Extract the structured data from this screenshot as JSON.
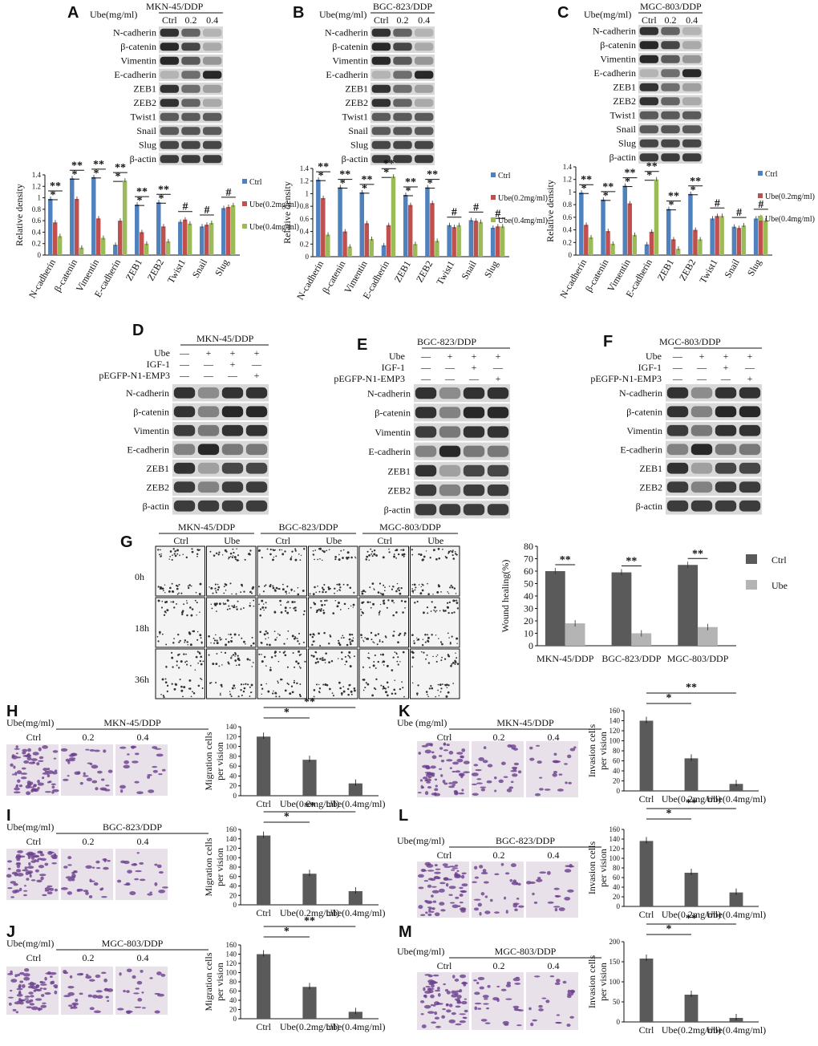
{
  "panels": {
    "A": {
      "label": "A",
      "cell": "MKN-45/DDP",
      "ube_header": "Ube(mg/ml)",
      "doses": [
        "Ctrl",
        "0.2",
        "0.4"
      ],
      "genes": [
        "N-cadherin",
        "β-catenin",
        "Vimentin",
        "E-cadherin",
        "ZEB1",
        "ZEB2",
        "Twist1",
        "Snail",
        "Slug",
        "β-actin"
      ]
    },
    "B": {
      "label": "B",
      "cell": "BGC-823/DDP",
      "ube_header": "Ube(mg/ml)",
      "doses": [
        "Ctrl",
        "0.2",
        "0.4"
      ],
      "genes": [
        "N-cadherin",
        "β-catenin",
        "Vimentin",
        "E-cadherin",
        "ZEB1",
        "ZEB2",
        "Twist1",
        "Snail",
        "Slug",
        "β-actin"
      ]
    },
    "C": {
      "label": "C",
      "cell": "MGC-803/DDP",
      "ube_header": "Ube(mg/ml)",
      "doses": [
        "Ctrl",
        "0.2",
        "0.4"
      ],
      "genes": [
        "N-cadherin",
        "β-catenin",
        "Vimentin",
        "E-cadherin",
        "ZEB1",
        "ZEB2",
        "Twist1",
        "Snail",
        "Slug",
        "β-actin"
      ]
    },
    "D": {
      "label": "D",
      "cell": "MKN-45/DDP"
    },
    "E": {
      "label": "E",
      "cell": "BGC-823/DDP"
    },
    "F": {
      "label": "F",
      "cell": "MGC-803/DDP"
    },
    "G": {
      "label": "G"
    },
    "H": {
      "label": "H",
      "cell": "MKN-45/DDP"
    },
    "I": {
      "label": "I",
      "cell": "BGC-823/DDP"
    },
    "J": {
      "label": "J",
      "cell": "MGC-803/DDP"
    },
    "K": {
      "label": "K",
      "cell": "MKN-45/DDP"
    },
    "L": {
      "label": "L",
      "cell": "BGC-823/DDP"
    },
    "M": {
      "label": "M",
      "cell": "MGC-803/DDP"
    }
  },
  "def_rows": {
    "ube": "Ube",
    "igf": "IGF-1",
    "emp3": "pEGFP-N1-EMP3",
    "signs": [
      [
        "—",
        "+",
        "+",
        "+"
      ],
      [
        "—",
        "—",
        "+",
        "—"
      ],
      [
        "—",
        "—",
        "—",
        "+"
      ]
    ],
    "genes": [
      "N-cadherin",
      "β-catenin",
      "Vimentin",
      "E-cadherin",
      "ZEB1",
      "ZEB2",
      "β-actin"
    ]
  },
  "g_panel": {
    "times": [
      "0h",
      "18h",
      "36h"
    ],
    "cols": [
      "Ctrl",
      "Ube",
      "Ctrl",
      "Ube",
      "Ctrl",
      "Ube"
    ],
    "cells": [
      "MKN-45/DDP",
      "BGC-823/DDP",
      "MGC-803/DDP"
    ]
  },
  "hijklm": {
    "ube_header": "Ube(mg/ml)",
    "ube_header_k": "Ube (mg/ml)",
    "doses": [
      "Ctrl",
      "0.2",
      "0.4"
    ],
    "mig_ylabel": [
      "Migration cells",
      "per vision"
    ],
    "inv_ylabel": [
      "Invasion cells",
      "per vision"
    ]
  },
  "colors": {
    "ctrl": "#4f81bd",
    "ube02": "#c0504d",
    "ube04": "#9bbb59",
    "dark": "#5a5a5a",
    "light": "#b4b4b4"
  },
  "chart_data": [
    {
      "id": "A",
      "type": "bar",
      "ylabel": "Relative density",
      "ylim": [
        0,
        1.4
      ],
      "yticks": [
        "0",
        "0.2",
        "0.4",
        "0.6",
        "0.8",
        "1",
        "1.2",
        "1.4"
      ],
      "categories": [
        "N-cadherin",
        "β-catenin",
        "Vimentin",
        "E-cadherin",
        "ZEB1",
        "ZEB2",
        "Twist1",
        "Snail",
        "Slug"
      ],
      "legend": [
        "Ctrl",
        "Ube(0.2mg/ml)",
        "Ube(0.4mg/ml)"
      ],
      "series": [
        {
          "name": "Ctrl",
          "values": [
            0.98,
            1.34,
            1.36,
            0.18,
            0.88,
            0.92,
            0.58,
            0.5,
            0.82
          ]
        },
        {
          "name": "Ube(0.2mg/ml)",
          "values": [
            0.57,
            0.98,
            0.64,
            0.6,
            0.4,
            0.5,
            0.62,
            0.53,
            0.84
          ]
        },
        {
          "name": "Ube(0.4mg/ml)",
          "values": [
            0.33,
            0.13,
            0.3,
            1.3,
            0.2,
            0.24,
            0.55,
            0.56,
            0.87
          ]
        }
      ],
      "sig": [
        "**",
        "**",
        "**",
        "**",
        "**",
        "**",
        "#",
        "#",
        "#"
      ],
      "sig2": [
        "*",
        "*",
        "*",
        "*",
        "*",
        "*",
        "",
        "",
        ""
      ]
    },
    {
      "id": "B",
      "type": "bar",
      "ylabel": "Relative density",
      "ylim": [
        0,
        1.4
      ],
      "yticks": [
        "0",
        "0.2",
        "0.4",
        "0.6",
        "0.8",
        "1",
        "1.2",
        "1.4"
      ],
      "categories": [
        "N-cadherin",
        "β-catenin",
        "Vimentin",
        "E-cadherin",
        "ZEB1",
        "ZEB2",
        "Twist1",
        "Snail",
        "Slug"
      ],
      "legend": [
        "Ctrl",
        "Ube(0.2mg/ml)",
        "Ube(0.4mg/ml)"
      ],
      "series": [
        {
          "name": "Ctrl",
          "values": [
            1.22,
            1.1,
            1.02,
            0.18,
            0.98,
            1.1,
            0.5,
            0.58,
            0.46
          ]
        },
        {
          "name": "Ube(0.2mg/ml)",
          "values": [
            0.93,
            0.4,
            0.53,
            0.5,
            0.82,
            0.85,
            0.47,
            0.57,
            0.48
          ]
        },
        {
          "name": "Ube(0.4mg/ml)",
          "values": [
            0.35,
            0.16,
            0.28,
            1.27,
            0.2,
            0.25,
            0.5,
            0.55,
            0.48
          ]
        }
      ],
      "sig": [
        "**",
        "**",
        "**",
        "**",
        "**",
        "**",
        "#",
        "#",
        "#"
      ],
      "sig2": [
        "*",
        "*",
        "*",
        "*",
        "*",
        "*",
        "",
        "",
        ""
      ]
    },
    {
      "id": "C",
      "type": "bar",
      "ylabel": "Relative density",
      "ylim": [
        0,
        1.4
      ],
      "yticks": [
        "0",
        "0.2",
        "0.4",
        "0.6",
        "0.8",
        "1",
        "1.2",
        "1.4"
      ],
      "categories": [
        "N-cadherin",
        "β-catenin",
        "Vimentin",
        "E-cadherin",
        "ZEB1",
        "ZEB2",
        "Twist1",
        "Snail",
        "Slug"
      ],
      "legend": [
        "Ctrl",
        "Ube(0.2mg/ml)",
        "Ube(0.4mg/ml)"
      ],
      "series": [
        {
          "name": "Ctrl",
          "values": [
            0.99,
            0.88,
            1.1,
            0.17,
            0.73,
            0.97,
            0.58,
            0.45,
            0.58
          ]
        },
        {
          "name": "Ube(0.2mg/ml)",
          "values": [
            0.48,
            0.38,
            0.82,
            0.37,
            0.25,
            0.4,
            0.62,
            0.43,
            0.6
          ]
        },
        {
          "name": "Ube(0.4mg/ml)",
          "values": [
            0.28,
            0.18,
            0.32,
            1.2,
            0.1,
            0.25,
            0.62,
            0.47,
            0.55
          ]
        }
      ],
      "sig": [
        "**",
        "**",
        "**",
        "**",
        "**",
        "**",
        "#",
        "#",
        "#"
      ],
      "sig2": [
        "*",
        "*",
        "*",
        "*",
        "*",
        "*",
        "",
        "",
        ""
      ]
    },
    {
      "id": "G",
      "type": "bar",
      "ylabel": "Wound healing(%)",
      "ylim": [
        0,
        80
      ],
      "yticks": [
        "0",
        "10",
        "20",
        "30",
        "40",
        "50",
        "60",
        "70",
        "80"
      ],
      "categories": [
        "MKN-45/DDP",
        "BGC-823/DDP",
        "MGC-803/DDP"
      ],
      "legend": [
        "Ctrl",
        "Ube"
      ],
      "series": [
        {
          "name": "Ctrl",
          "values": [
            60,
            59,
            65
          ]
        },
        {
          "name": "Ube",
          "values": [
            18,
            10,
            15
          ]
        }
      ],
      "sig": [
        "**",
        "**",
        "**"
      ]
    },
    {
      "id": "H",
      "type": "bar",
      "ylim": [
        0,
        140
      ],
      "yticks": [
        "0",
        "20",
        "40",
        "60",
        "80",
        "100",
        "120",
        "140"
      ],
      "categories": [
        "Ctrl",
        "Ube(0.2mg/ml)",
        "Ube(0.4mg/ml)"
      ],
      "values": [
        120,
        73,
        25
      ]
    },
    {
      "id": "I",
      "type": "bar",
      "ylim": [
        0,
        160
      ],
      "yticks": [
        "0",
        "20",
        "40",
        "60",
        "80",
        "100",
        "120",
        "140",
        "160"
      ],
      "categories": [
        "Ctrl",
        "Ube(0.2mg/ml)",
        "Ube(0.4mg/ml)"
      ],
      "values": [
        147,
        66,
        29
      ]
    },
    {
      "id": "J",
      "type": "bar",
      "ylim": [
        0,
        160
      ],
      "yticks": [
        "0",
        "20",
        "40",
        "60",
        "80",
        "100",
        "120",
        "140",
        "160"
      ],
      "categories": [
        "Ctrl",
        "Ube(0.2mg/ml)",
        "Ube(0.4mg/ml)"
      ],
      "values": [
        140,
        69,
        15
      ]
    },
    {
      "id": "K",
      "type": "bar",
      "ylim": [
        0,
        160
      ],
      "yticks": [
        "0",
        "20",
        "40",
        "60",
        "80",
        "100",
        "120",
        "140",
        "160"
      ],
      "categories": [
        "Ctrl",
        "Ube(0.2mg/ml)",
        "Ube(0.4mg/ml)"
      ],
      "values": [
        140,
        65,
        14
      ]
    },
    {
      "id": "L",
      "type": "bar",
      "ylim": [
        0,
        160
      ],
      "yticks": [
        "0",
        "20",
        "40",
        "60",
        "80",
        "100",
        "120",
        "140",
        "160"
      ],
      "categories": [
        "Ctrl",
        "Ube(0.2mg/ml)",
        "Ube(0.4mg/ml)"
      ],
      "values": [
        136,
        70,
        29
      ]
    },
    {
      "id": "M",
      "type": "bar",
      "ylim": [
        0,
        200
      ],
      "yticks": [
        "0",
        "50",
        "100",
        "150",
        "200"
      ],
      "categories": [
        "Ctrl",
        "Ube(0.2mg/ml)",
        "Ube(0.4mg/ml)"
      ],
      "values": [
        158,
        68,
        10
      ]
    }
  ]
}
